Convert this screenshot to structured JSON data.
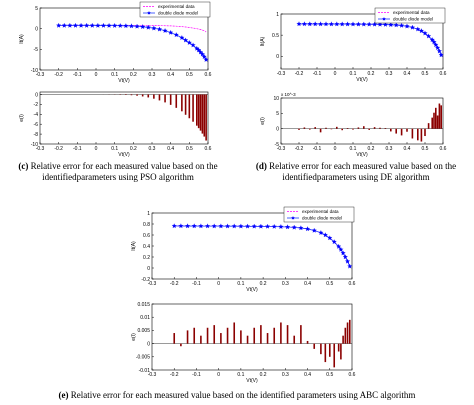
{
  "colors": {
    "experimental": "#ff00ff",
    "model": "#1f3fff",
    "model_marker": "#0000ff",
    "stem": "#8b0000",
    "axis": "#000000"
  },
  "captions": {
    "c": {
      "tag": "(c)",
      "text": "Relative error for each measured value based on the identifiedparameters using PSO algorithm"
    },
    "d": {
      "tag": "(d)",
      "text": "Relative error for each measured value based on the identifiedparameters using DE algorithm"
    },
    "e": {
      "tag": "(e)",
      "text": "Relative error for each measured value based on the identified parameters using ABC algorithm"
    }
  },
  "chart_data": [
    {
      "id": "c-iv",
      "type": "line",
      "legend": {
        "entries": [
          "experimental data",
          "double diode model"
        ],
        "placement": "top-right"
      },
      "xlabel": "Vt(V)",
      "ylabel": "It(A)",
      "xlim": [
        -0.3,
        0.6
      ],
      "ylim": [
        -10,
        5
      ],
      "xticks": [
        "-0.3",
        "-0.2",
        "-0.1",
        "0",
        "0.1",
        "0.2",
        "0.3",
        "0.4",
        "0.5",
        "0.6"
      ],
      "yticks": [
        "5",
        "0",
        "-5",
        "-10"
      ],
      "x": [
        -0.2,
        -0.17,
        -0.14,
        -0.11,
        -0.08,
        -0.05,
        -0.02,
        0.01,
        0.04,
        0.07,
        0.1,
        0.13,
        0.16,
        0.19,
        0.22,
        0.25,
        0.28,
        0.31,
        0.34,
        0.37,
        0.4,
        0.43,
        0.46,
        0.48,
        0.5,
        0.52,
        0.54,
        0.55,
        0.56,
        0.57,
        0.58,
        0.59
      ],
      "series": [
        {
          "name": "experimental data",
          "values": [
            0.76,
            0.76,
            0.76,
            0.76,
            0.76,
            0.76,
            0.76,
            0.76,
            0.76,
            0.76,
            0.76,
            0.76,
            0.76,
            0.76,
            0.76,
            0.75,
            0.75,
            0.74,
            0.73,
            0.71,
            0.67,
            0.6,
            0.5,
            0.4,
            0.28,
            0.15,
            0.0,
            -0.1,
            -0.2,
            -0.35,
            -0.5,
            -0.8
          ]
        },
        {
          "name": "double diode model",
          "values": [
            0.76,
            0.76,
            0.76,
            0.76,
            0.76,
            0.76,
            0.76,
            0.75,
            0.75,
            0.74,
            0.73,
            0.71,
            0.68,
            0.63,
            0.55,
            0.45,
            0.3,
            0.1,
            -0.15,
            -0.5,
            -0.95,
            -1.5,
            -2.2,
            -2.8,
            -3.4,
            -4.0,
            -4.8,
            -5.2,
            -5.7,
            -6.2,
            -6.8,
            -7.5
          ]
        }
      ]
    },
    {
      "id": "c-err",
      "type": "bar",
      "xlabel": "Vt(V)",
      "ylabel": "e(I)",
      "xlim": [
        -0.3,
        0.6
      ],
      "ylim": [
        -10,
        0.5
      ],
      "xticks": [
        "-0.3",
        "-0.2",
        "-0.1",
        "0",
        "0.1",
        "0.2",
        "0.3",
        "0.4",
        "0.5",
        "0.6"
      ],
      "yticks": [
        "0",
        "-2",
        "-4",
        "-6",
        "-8",
        "-10"
      ],
      "x": [
        -0.2,
        -0.17,
        -0.14,
        -0.11,
        -0.08,
        -0.05,
        -0.02,
        0.01,
        0.04,
        0.07,
        0.1,
        0.13,
        0.16,
        0.19,
        0.22,
        0.25,
        0.28,
        0.31,
        0.34,
        0.37,
        0.4,
        0.43,
        0.46,
        0.48,
        0.5,
        0.52,
        0.54,
        0.55,
        0.56,
        0.57,
        0.58,
        0.59
      ],
      "values": [
        0,
        0,
        0,
        0,
        0,
        0,
        0,
        0,
        -0.01,
        -0.02,
        -0.03,
        -0.06,
        -0.1,
        -0.15,
        -0.25,
        -0.4,
        -0.6,
        -0.85,
        -1.2,
        -1.6,
        -2.1,
        -2.7,
        -3.4,
        -4.1,
        -4.8,
        -5.5,
        -6.3,
        -6.8,
        -7.3,
        -7.9,
        -8.5,
        -9.3
      ]
    },
    {
      "id": "d-iv",
      "type": "line",
      "legend": {
        "entries": [
          "experimental data",
          "double diode model"
        ],
        "placement": "top-right"
      },
      "xlabel": "Vt(V)",
      "ylabel": "It(A)",
      "xlim": [
        -0.3,
        0.6
      ],
      "ylim": [
        -0.3,
        1
      ],
      "xticks": [
        "-0.3",
        "-0.2",
        "-0.1",
        "0",
        "0.1",
        "0.2",
        "0.3",
        "0.4",
        "0.5",
        "0.6"
      ],
      "yticks": [
        "1",
        "0.5",
        "0"
      ],
      "x": [
        -0.2,
        -0.17,
        -0.14,
        -0.11,
        -0.08,
        -0.05,
        -0.02,
        0.01,
        0.04,
        0.07,
        0.1,
        0.13,
        0.16,
        0.19,
        0.22,
        0.25,
        0.28,
        0.31,
        0.34,
        0.37,
        0.4,
        0.43,
        0.46,
        0.48,
        0.5,
        0.52,
        0.54,
        0.55,
        0.56,
        0.57,
        0.58,
        0.59
      ],
      "series": [
        {
          "name": "experimental data",
          "values": [
            0.764,
            0.764,
            0.763,
            0.763,
            0.762,
            0.762,
            0.761,
            0.761,
            0.76,
            0.76,
            0.759,
            0.758,
            0.757,
            0.756,
            0.755,
            0.753,
            0.75,
            0.745,
            0.738,
            0.727,
            0.71,
            0.682,
            0.64,
            0.6,
            0.545,
            0.475,
            0.39,
            0.335,
            0.27,
            0.2,
            0.12,
            0.03
          ]
        },
        {
          "name": "double diode model",
          "values": [
            0.764,
            0.764,
            0.763,
            0.763,
            0.762,
            0.762,
            0.761,
            0.761,
            0.76,
            0.76,
            0.759,
            0.758,
            0.757,
            0.756,
            0.755,
            0.753,
            0.75,
            0.745,
            0.738,
            0.727,
            0.71,
            0.682,
            0.64,
            0.6,
            0.545,
            0.475,
            0.39,
            0.335,
            0.27,
            0.2,
            0.12,
            0.03
          ]
        }
      ]
    },
    {
      "id": "d-err",
      "type": "bar",
      "xlabel": "Vt(V)",
      "ylabel": "e(I)",
      "multiplier": "x 10^-3",
      "xlim": [
        -0.3,
        0.6
      ],
      "ylim": [
        -5,
        10
      ],
      "xticks": [
        "-0.3",
        "-0.2",
        "-0.1",
        "0",
        "0.1",
        "0.2",
        "0.3",
        "0.4",
        "0.5",
        "0.6"
      ],
      "yticks": [
        "10",
        "5",
        "0",
        "-5"
      ],
      "x": [
        -0.2,
        -0.17,
        -0.14,
        -0.11,
        -0.08,
        -0.05,
        -0.02,
        0.01,
        0.04,
        0.07,
        0.1,
        0.13,
        0.16,
        0.19,
        0.22,
        0.25,
        0.28,
        0.31,
        0.34,
        0.37,
        0.4,
        0.43,
        0.46,
        0.48,
        0.5,
        0.52,
        0.54,
        0.55,
        0.56,
        0.57,
        0.58,
        0.59
      ],
      "values": [
        -0.4,
        0.4,
        -0.3,
        0.5,
        -1.2,
        0.3,
        -0.2,
        0.6,
        -0.5,
        0.2,
        -0.3,
        0.4,
        0.8,
        -0.4,
        0.5,
        0.3,
        0.2,
        -0.9,
        -1.6,
        -2.2,
        -1.0,
        -3.2,
        -3.8,
        -4.2,
        -2.4,
        1.8,
        3.6,
        5.2,
        6.8,
        4.3,
        8.2,
        7.6
      ]
    },
    {
      "id": "e-iv",
      "type": "line",
      "legend": {
        "entries": [
          "experimental data",
          "double diode model"
        ],
        "placement": "top-right"
      },
      "xlabel": "Vt(V)",
      "ylabel": "It(A)",
      "xlim": [
        -0.3,
        0.6
      ],
      "ylim": [
        -0.2,
        1
      ],
      "xticks": [
        "-0.3",
        "-0.2",
        "-0.1",
        "0",
        "0.1",
        "0.2",
        "0.3",
        "0.4",
        "0.5",
        "0.6"
      ],
      "yticks": [
        "1",
        "0.8",
        "0.6",
        "0.4",
        "0.2",
        "0",
        "-0.2"
      ],
      "x": [
        -0.2,
        -0.17,
        -0.14,
        -0.11,
        -0.08,
        -0.05,
        -0.02,
        0.01,
        0.04,
        0.07,
        0.1,
        0.13,
        0.16,
        0.19,
        0.22,
        0.25,
        0.28,
        0.31,
        0.34,
        0.37,
        0.4,
        0.43,
        0.46,
        0.48,
        0.5,
        0.52,
        0.54,
        0.55,
        0.56,
        0.57,
        0.58,
        0.59
      ],
      "series": [
        {
          "name": "experimental data",
          "values": [
            0.764,
            0.764,
            0.763,
            0.763,
            0.762,
            0.762,
            0.761,
            0.761,
            0.76,
            0.76,
            0.759,
            0.758,
            0.757,
            0.756,
            0.755,
            0.753,
            0.75,
            0.745,
            0.738,
            0.727,
            0.71,
            0.682,
            0.64,
            0.6,
            0.545,
            0.475,
            0.39,
            0.335,
            0.27,
            0.2,
            0.12,
            0.03
          ]
        },
        {
          "name": "double diode model",
          "values": [
            0.764,
            0.764,
            0.763,
            0.763,
            0.762,
            0.762,
            0.761,
            0.761,
            0.76,
            0.76,
            0.759,
            0.758,
            0.757,
            0.756,
            0.755,
            0.753,
            0.75,
            0.745,
            0.738,
            0.727,
            0.71,
            0.682,
            0.64,
            0.6,
            0.545,
            0.475,
            0.39,
            0.335,
            0.27,
            0.2,
            0.12,
            0.03
          ]
        }
      ]
    },
    {
      "id": "e-err",
      "type": "bar",
      "xlabel": "Vt(V)",
      "ylabel": "e(I)",
      "xlim": [
        -0.3,
        0.6
      ],
      "ylim": [
        -0.01,
        0.015
      ],
      "xticks": [
        "-0.3",
        "-0.2",
        "-0.1",
        "0",
        "0.1",
        "0.2",
        "0.3",
        "0.4",
        "0.5",
        "0.6"
      ],
      "yticks": [
        "0.015",
        "0.01",
        "0.005",
        "0",
        "-0.005",
        "-0.01"
      ],
      "x": [
        -0.2,
        -0.17,
        -0.14,
        -0.11,
        -0.08,
        -0.05,
        -0.02,
        0.01,
        0.04,
        0.07,
        0.1,
        0.13,
        0.16,
        0.19,
        0.22,
        0.25,
        0.28,
        0.31,
        0.34,
        0.37,
        0.4,
        0.43,
        0.46,
        0.48,
        0.5,
        0.52,
        0.54,
        0.55,
        0.56,
        0.57,
        0.58,
        0.59
      ],
      "values": [
        0.004,
        -0.001,
        0.005,
        0.006,
        0.003,
        0.006,
        0.007,
        0.004,
        0.006,
        0.008,
        0.005,
        0.003,
        0.006,
        0.007,
        0.004,
        0.006,
        0.008,
        0.007,
        0.003,
        0.007,
        0.001,
        -0.002,
        -0.004,
        -0.007,
        -0.005,
        -0.009,
        -0.003,
        -0.006,
        0.003,
        0.006,
        0.008,
        0.009
      ]
    }
  ]
}
